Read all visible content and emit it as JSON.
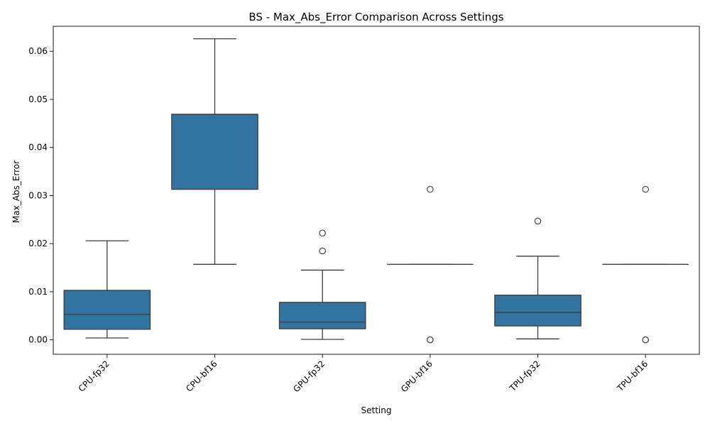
{
  "chart_data": {
    "type": "box",
    "title": "BS - Max_Abs_Error Comparison Across Settings",
    "xlabel": "Setting",
    "ylabel": "Max_Abs_Error",
    "ylim": [
      -0.003,
      0.0652
    ],
    "yticks": [
      0.0,
      0.01,
      0.02,
      0.03,
      0.04,
      0.05,
      0.06
    ],
    "ytick_labels": [
      "0.00",
      "0.01",
      "0.02",
      "0.03",
      "0.04",
      "0.05",
      "0.06"
    ],
    "grid": false,
    "box_color": "#3274a1",
    "edge_color": "#3d3d3d",
    "categories": [
      "CPU-fp32",
      "CPU-bf16",
      "GPU-fp32",
      "GPU-bf16",
      "TPU-fp32",
      "TPU-bf16"
    ],
    "boxes": [
      {
        "category": "CPU-fp32",
        "whisker_low": 0.0004,
        "q1": 0.0022,
        "median": 0.0053,
        "q3": 0.0103,
        "whisker_high": 0.0206,
        "outliers": []
      },
      {
        "category": "CPU-bf16",
        "whisker_low": 0.0157,
        "q1": 0.0313,
        "median": 0.0469,
        "q3": 0.0469,
        "whisker_high": 0.0626,
        "outliers": []
      },
      {
        "category": "GPU-fp32",
        "whisker_low": 0.0001,
        "q1": 0.0023,
        "median": 0.0037,
        "q3": 0.0078,
        "whisker_high": 0.0145,
        "outliers": [
          0.0185,
          0.0222
        ]
      },
      {
        "category": "GPU-bf16",
        "whisker_low": 0.0157,
        "q1": 0.0157,
        "median": 0.0157,
        "q3": 0.0157,
        "whisker_high": 0.0157,
        "outliers": [
          0.0313,
          0.0,
          0.0
        ]
      },
      {
        "category": "TPU-fp32",
        "whisker_low": 0.0002,
        "q1": 0.0029,
        "median": 0.0057,
        "q3": 0.0093,
        "whisker_high": 0.0174,
        "outliers": [
          0.0247
        ]
      },
      {
        "category": "TPU-bf16",
        "whisker_low": 0.0157,
        "q1": 0.0157,
        "median": 0.0157,
        "q3": 0.0157,
        "whisker_high": 0.0157,
        "outliers": [
          0.0313,
          0.0,
          0.0
        ]
      }
    ]
  }
}
